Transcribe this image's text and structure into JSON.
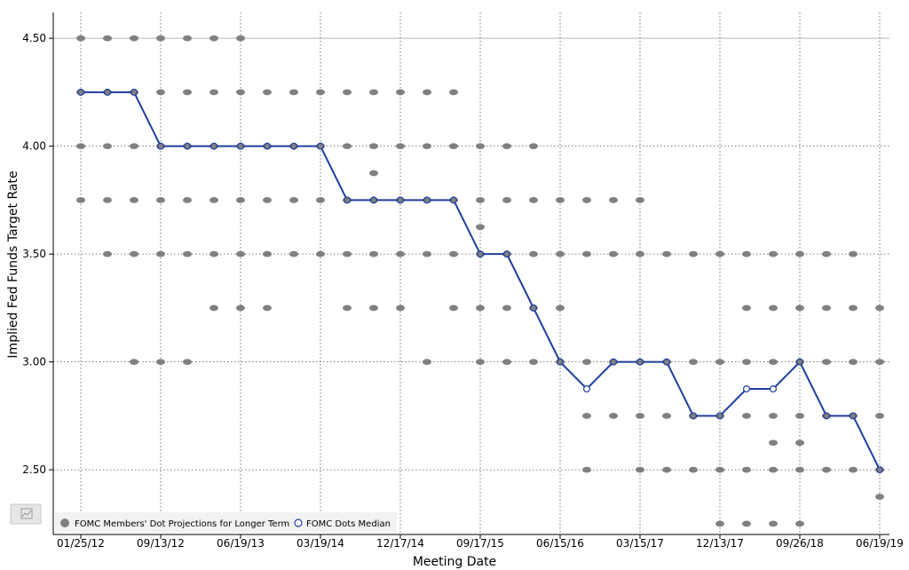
{
  "chart_data": {
    "type": "scatter",
    "xlabel": "Meeting Date",
    "ylabel": "Implied Fed Funds Target Rate",
    "ylim": [
      2.2,
      4.62
    ],
    "x_tick_labels": [
      "01/25/12",
      "09/13/12",
      "06/19/13",
      "03/19/14",
      "12/17/14",
      "09/17/15",
      "06/15/16",
      "03/15/17",
      "12/13/17",
      "09/26/18",
      "06/19/19"
    ],
    "y_tick_labels": [
      "4.50",
      "4.00",
      "3.50",
      "3.00",
      "2.50"
    ],
    "y_ticks": [
      4.5,
      4.0,
      3.5,
      3.0,
      2.5
    ],
    "meetings": [
      "01/25/12",
      "04/25/12",
      "06/20/12",
      "09/13/12",
      "12/12/12",
      "03/20/13",
      "06/19/13",
      "09/18/13",
      "12/18/13",
      "03/19/14",
      "06/18/14",
      "09/17/14",
      "12/17/14",
      "03/18/15",
      "06/17/15",
      "09/17/15",
      "12/16/15",
      "03/16/16",
      "06/15/16",
      "09/21/16",
      "12/14/16",
      "03/15/17",
      "06/14/17",
      "09/20/17",
      "12/13/17",
      "03/21/18",
      "06/13/18",
      "09/26/18",
      "12/19/18",
      "03/20/19",
      "06/19/19"
    ],
    "series": [
      {
        "name": "FOMC Members' Dot Projections for Longer Term",
        "color": "#808080",
        "marker": "filled-circle",
        "dots": [
          [
            4.5,
            4.25,
            4.0,
            3.75
          ],
          [
            4.5,
            4.25,
            4.0,
            3.75,
            3.5
          ],
          [
            4.5,
            4.25,
            4.0,
            3.75,
            3.5,
            3.0
          ],
          [
            4.5,
            4.25,
            4.0,
            3.75,
            3.5,
            3.0
          ],
          [
            4.5,
            4.25,
            4.0,
            3.75,
            3.5,
            3.0
          ],
          [
            4.5,
            4.25,
            4.0,
            3.75,
            3.5,
            3.25
          ],
          [
            4.5,
            4.25,
            4.0,
            3.75,
            3.5,
            3.25
          ],
          [
            4.25,
            4.0,
            3.75,
            3.5,
            3.25
          ],
          [
            4.25,
            4.0,
            3.75,
            3.5
          ],
          [
            4.25,
            4.0,
            3.75,
            3.5
          ],
          [
            4.25,
            4.0,
            3.75,
            3.5,
            3.25
          ],
          [
            4.25,
            4.0,
            3.875,
            3.75,
            3.5,
            3.25
          ],
          [
            4.25,
            4.0,
            3.75,
            3.5,
            3.25
          ],
          [
            4.25,
            4.0,
            3.75,
            3.5,
            3.0
          ],
          [
            4.25,
            4.0,
            3.75,
            3.5,
            3.25
          ],
          [
            4.0,
            3.75,
            3.625,
            3.5,
            3.25,
            3.0
          ],
          [
            4.0,
            3.75,
            3.5,
            3.25,
            3.0
          ],
          [
            4.0,
            3.75,
            3.5,
            3.25,
            3.0
          ],
          [
            3.75,
            3.5,
            3.25,
            3.0
          ],
          [
            3.75,
            3.5,
            3.0,
            2.75,
            2.5
          ],
          [
            3.75,
            3.5,
            3.0,
            2.75
          ],
          [
            3.75,
            3.5,
            3.0,
            2.75,
            2.5
          ],
          [
            3.5,
            3.0,
            2.75,
            2.5
          ],
          [
            3.5,
            3.0,
            2.75,
            2.5
          ],
          [
            3.5,
            3.0,
            2.75,
            2.5,
            2.25
          ],
          [
            3.5,
            3.25,
            3.0,
            2.75,
            2.5,
            2.25
          ],
          [
            3.5,
            3.25,
            3.0,
            2.75,
            2.625,
            2.5,
            2.25
          ],
          [
            3.5,
            3.25,
            3.0,
            2.75,
            2.625,
            2.5,
            2.25
          ],
          [
            3.5,
            3.25,
            3.0,
            2.75,
            2.5
          ],
          [
            3.5,
            3.25,
            3.0,
            2.75,
            2.5
          ],
          [
            3.25,
            3.0,
            2.75,
            2.5,
            2.375
          ]
        ]
      },
      {
        "name": "FOMC Dots Median",
        "color": "#1f3f9e",
        "marker": "open-circle",
        "values": [
          4.25,
          4.25,
          4.25,
          4.0,
          4.0,
          4.0,
          4.0,
          4.0,
          4.0,
          4.0,
          3.75,
          3.75,
          3.75,
          3.75,
          3.75,
          3.5,
          3.5,
          3.25,
          3.0,
          2.875,
          3.0,
          3.0,
          3.0,
          2.75,
          2.75,
          2.875,
          2.875,
          3.0,
          2.75,
          2.75,
          2.5
        ]
      }
    ],
    "grid": true,
    "legend_position": "bottom-left"
  },
  "icons": {
    "chart_toggle": "line-chart-icon"
  }
}
